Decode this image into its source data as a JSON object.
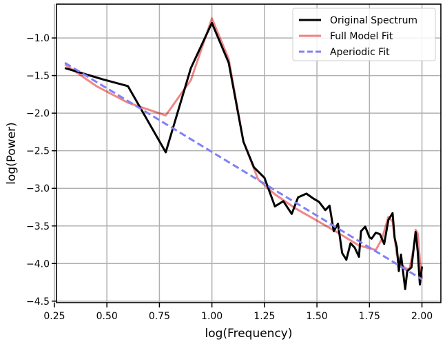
{
  "chart_data": {
    "type": "line",
    "title": "",
    "xlabel": "log(Frequency)",
    "ylabel": "log(Power)",
    "xlim": [
      0.26,
      2.09
    ],
    "ylim": [
      -4.52,
      -0.55
    ],
    "grid": true,
    "legend_position": "top-right",
    "x_ticks": [
      0.25,
      0.5,
      0.75,
      1.0,
      1.25,
      1.5,
      1.75,
      2.0
    ],
    "x_tick_labels": [
      "0.25",
      "0.50",
      "0.75",
      "1.00",
      "1.25",
      "1.50",
      "1.75",
      "2.00"
    ],
    "y_ticks": [
      -4.5,
      -4.0,
      -3.5,
      -3.0,
      -2.5,
      -2.0,
      -1.5,
      -1.0
    ],
    "y_tick_labels": [
      "−4.5",
      "−4.0",
      "−3.5",
      "−3.0",
      "−2.5",
      "−2.0",
      "−1.5",
      "−1.0"
    ],
    "series": [
      {
        "name": "Original Spectrum",
        "color": "#000000",
        "style": "solid",
        "points": [
          [
            0.3,
            -1.4
          ],
          [
            0.48,
            -1.55
          ],
          [
            0.6,
            -1.64
          ],
          [
            0.78,
            -2.52
          ],
          [
            0.9,
            -1.4
          ],
          [
            1.0,
            -0.8
          ],
          [
            1.08,
            -1.33
          ],
          [
            1.15,
            -2.38
          ],
          [
            1.2,
            -2.72
          ],
          [
            1.25,
            -2.86
          ],
          [
            1.3,
            -3.24
          ],
          [
            1.34,
            -3.17
          ],
          [
            1.38,
            -3.34
          ],
          [
            1.41,
            -3.12
          ],
          [
            1.45,
            -3.07
          ],
          [
            1.48,
            -3.13
          ],
          [
            1.51,
            -3.18
          ],
          [
            1.54,
            -3.29
          ],
          [
            1.56,
            -3.23
          ],
          [
            1.58,
            -3.57
          ],
          [
            1.6,
            -3.47
          ],
          [
            1.62,
            -3.86
          ],
          [
            1.64,
            -3.95
          ],
          [
            1.66,
            -3.73
          ],
          [
            1.68,
            -3.79
          ],
          [
            1.7,
            -3.91
          ],
          [
            1.71,
            -3.57
          ],
          [
            1.73,
            -3.51
          ],
          [
            1.75,
            -3.65
          ],
          [
            1.76,
            -3.67
          ],
          [
            1.78,
            -3.59
          ],
          [
            1.8,
            -3.61
          ],
          [
            1.82,
            -3.74
          ],
          [
            1.84,
            -3.42
          ],
          [
            1.86,
            -3.33
          ],
          [
            1.87,
            -3.66
          ],
          [
            1.88,
            -3.78
          ],
          [
            1.89,
            -4.1
          ],
          [
            1.9,
            -3.88
          ],
          [
            1.92,
            -4.34
          ],
          [
            1.93,
            -4.1
          ],
          [
            1.95,
            -4.05
          ],
          [
            1.97,
            -3.58
          ],
          [
            1.98,
            -3.85
          ],
          [
            1.99,
            -4.28
          ],
          [
            2.0,
            -4.04
          ]
        ]
      },
      {
        "name": "Full Model Fit",
        "color": "#f08080",
        "style": "solid",
        "points": [
          [
            0.3,
            -1.35
          ],
          [
            0.45,
            -1.64
          ],
          [
            0.6,
            -1.86
          ],
          [
            0.78,
            -2.03
          ],
          [
            0.9,
            -1.56
          ],
          [
            1.0,
            -0.74
          ],
          [
            1.08,
            -1.28
          ],
          [
            1.15,
            -2.38
          ],
          [
            1.22,
            -2.88
          ],
          [
            1.3,
            -3.08
          ],
          [
            1.4,
            -3.27
          ],
          [
            1.5,
            -3.43
          ],
          [
            1.6,
            -3.59
          ],
          [
            1.7,
            -3.76
          ],
          [
            1.78,
            -3.82
          ],
          [
            1.81,
            -3.67
          ],
          [
            1.84,
            -3.38
          ],
          [
            1.86,
            -3.44
          ],
          [
            1.88,
            -3.88
          ],
          [
            1.9,
            -4.0
          ],
          [
            1.92,
            -4.06
          ],
          [
            1.94,
            -4.08
          ],
          [
            1.96,
            -3.8
          ],
          [
            1.97,
            -3.55
          ],
          [
            1.98,
            -3.6
          ],
          [
            1.99,
            -3.95
          ],
          [
            2.0,
            -4.2
          ]
        ]
      },
      {
        "name": "Aperiodic Fit",
        "color": "#8080f8",
        "style": "dashed",
        "points": [
          [
            0.3,
            -1.33
          ],
          [
            2.0,
            -4.21
          ]
        ]
      }
    ]
  }
}
